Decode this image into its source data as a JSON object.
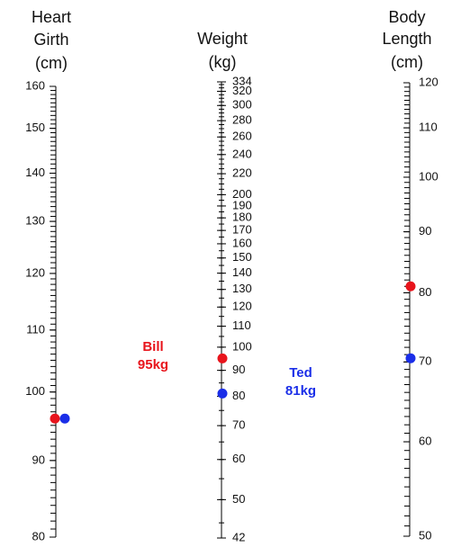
{
  "chart_data": {
    "type": "nomogram",
    "axes": [
      {
        "title": [
          "Heart",
          "Girth",
          "(cm)"
        ],
        "log_scale": true,
        "ylim": [
          80,
          160
        ],
        "minor_step": 1,
        "yticks": [
          80,
          90,
          100,
          110,
          120,
          130,
          140,
          150,
          160
        ]
      },
      {
        "title": [
          "Weight",
          "(kg)"
        ],
        "log_scale": true,
        "ylim": [
          42,
          334
        ],
        "minor_step": 5,
        "yticks": [
          42,
          50,
          60,
          70,
          80,
          90,
          100,
          110,
          120,
          130,
          140,
          150,
          160,
          170,
          180,
          190,
          200,
          220,
          240,
          260,
          280,
          300,
          320,
          334
        ]
      },
      {
        "title": [
          "Body",
          "Length",
          "(cm)"
        ],
        "log_scale": true,
        "ylim": [
          50,
          120
        ],
        "minor_step": 1,
        "yticks": [
          50,
          60,
          70,
          80,
          90,
          100,
          110,
          120
        ]
      }
    ],
    "series": [
      {
        "name": "Bill",
        "color": "#e8141c",
        "values": [
          96,
          95,
          81
        ],
        "weight_label": "95kg"
      },
      {
        "name": "Ted",
        "color": "#1a2ee8",
        "values": [
          96,
          81,
          70.5
        ],
        "weight_label": "81kg"
      }
    ]
  }
}
